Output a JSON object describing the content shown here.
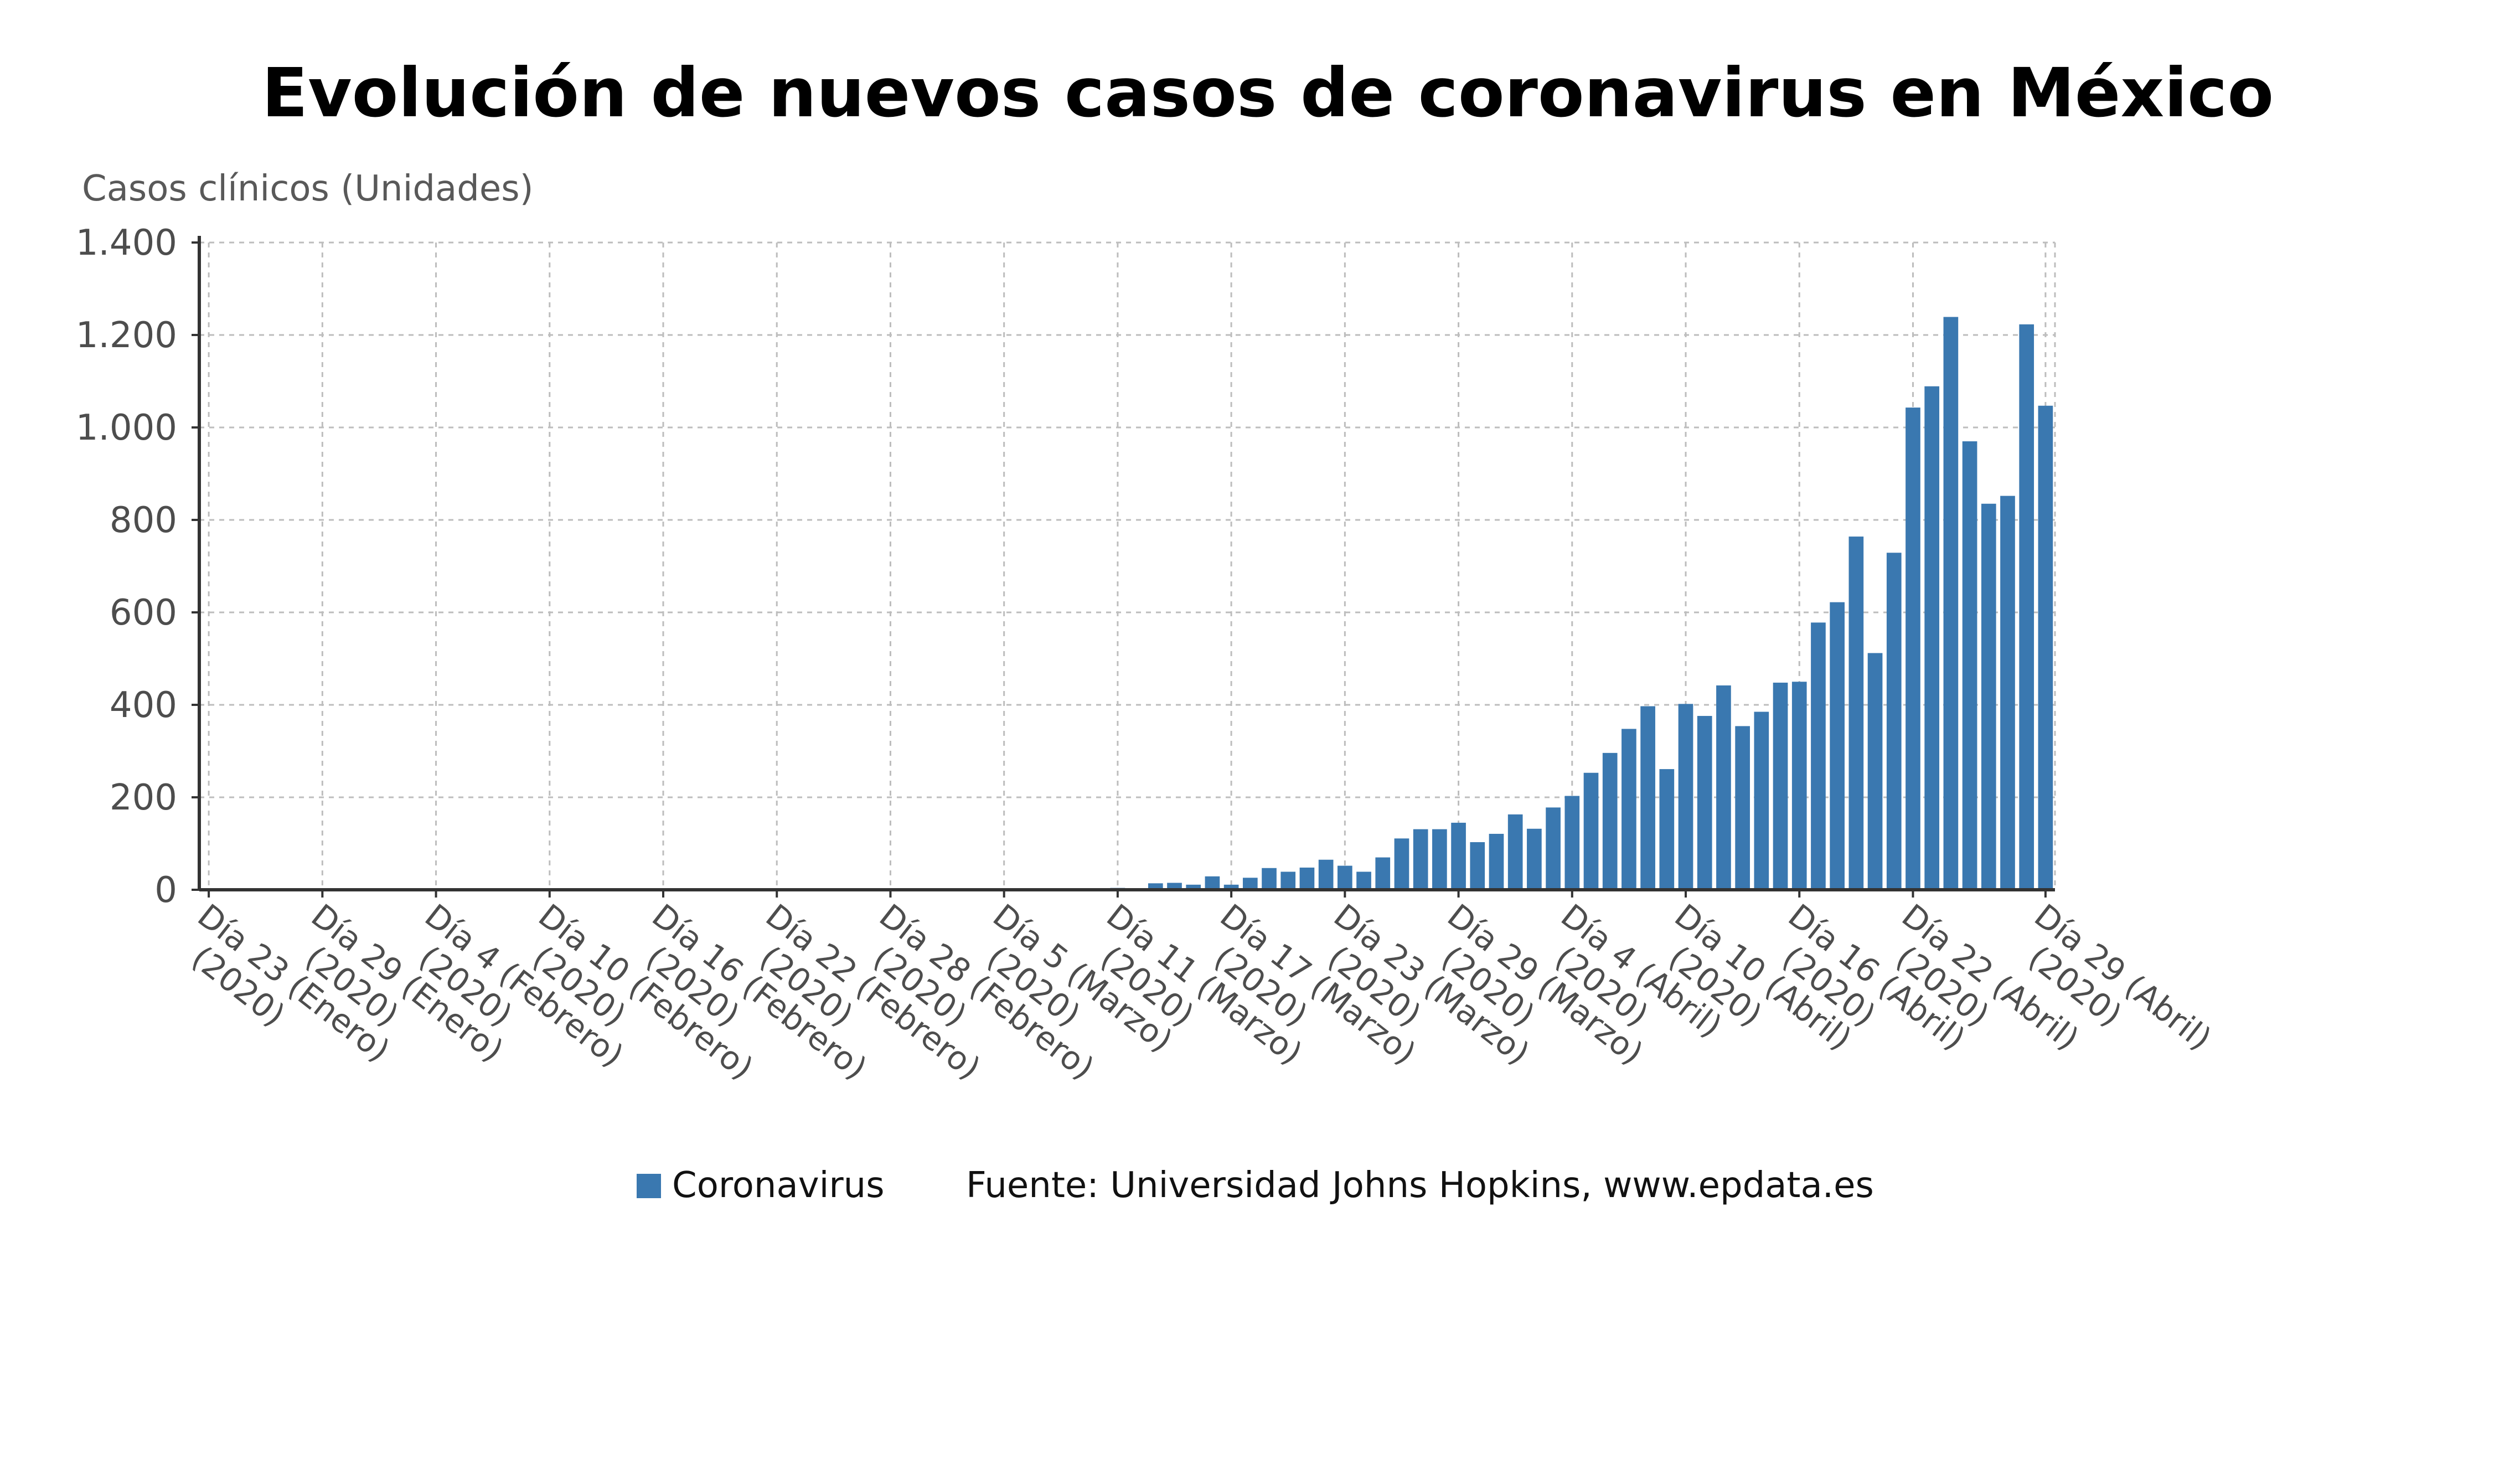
{
  "chart_data": {
    "type": "bar",
    "title": "Evolución de nuevos casos de coronavirus en México",
    "ylabel": "Casos clínicos (Unidades)",
    "xlabel": "",
    "ylim": [
      0,
      1400
    ],
    "yticks": [
      0,
      200,
      400,
      600,
      800,
      1000,
      1200,
      1400
    ],
    "ytick_labels": [
      "0",
      "200",
      "400",
      "600",
      "800",
      "1.000",
      "1.200",
      "1.400"
    ],
    "grid": true,
    "legend_position": "bottom",
    "colors": {
      "bar": "#3a78b0",
      "axis": "#333333",
      "grid": "#bdbdbd"
    },
    "xtick_labels": [
      {
        "index": 0,
        "line1": "Día 23 (Enero)",
        "line2": "(2020)"
      },
      {
        "index": 6,
        "line1": "Día 29 (Enero)",
        "line2": "(2020)"
      },
      {
        "index": 12,
        "line1": "Día 4 (Febrero)",
        "line2": "(2020)"
      },
      {
        "index": 18,
        "line1": "Día 10 (Febrero)",
        "line2": "(2020)"
      },
      {
        "index": 24,
        "line1": "Día 16 (Febrero)",
        "line2": "(2020)"
      },
      {
        "index": 30,
        "line1": "Día 22 (Febrero)",
        "line2": "(2020)"
      },
      {
        "index": 36,
        "line1": "Día 28 (Febrero)",
        "line2": "(2020)"
      },
      {
        "index": 42,
        "line1": "Día 5 (Marzo)",
        "line2": "(2020)"
      },
      {
        "index": 48,
        "line1": "Día 11 (Marzo)",
        "line2": "(2020)"
      },
      {
        "index": 54,
        "line1": "Día 17 (Marzo)",
        "line2": "(2020)"
      },
      {
        "index": 60,
        "line1": "Día 23 (Marzo)",
        "line2": "(2020)"
      },
      {
        "index": 66,
        "line1": "Día 29 (Marzo)",
        "line2": "(2020)"
      },
      {
        "index": 72,
        "line1": "Día 4 (Abril)",
        "line2": "(2020)"
      },
      {
        "index": 78,
        "line1": "Día 10 (Abril)",
        "line2": "(2020)"
      },
      {
        "index": 84,
        "line1": "Día 16 (Abril)",
        "line2": "(2020)"
      },
      {
        "index": 90,
        "line1": "Día 22 (Abril)",
        "line2": "(2020)"
      },
      {
        "index": 97,
        "line1": "Día 29 (Abril)",
        "line2": "(2020)"
      }
    ],
    "series": [
      {
        "name": "Coronavirus",
        "values": [
          0,
          0,
          0,
          0,
          0,
          0,
          0,
          0,
          0,
          0,
          0,
          0,
          0,
          0,
          0,
          0,
          0,
          0,
          0,
          0,
          0,
          0,
          0,
          0,
          0,
          0,
          0,
          0,
          0,
          0,
          0,
          0,
          0,
          0,
          0,
          0,
          0,
          1,
          2,
          1,
          0,
          1,
          0,
          0,
          2,
          1,
          1,
          3,
          4,
          3,
          14,
          15,
          11,
          29,
          11,
          26,
          47,
          39,
          48,
          65,
          52,
          39,
          70,
          111,
          131,
          131,
          145,
          103,
          121,
          163,
          132,
          178,
          203,
          253,
          296,
          348,
          397,
          261,
          402,
          376,
          442,
          354,
          385,
          448,
          450,
          578,
          622,
          764,
          512,
          729,
          1043,
          1089,
          1239,
          970,
          835,
          852,
          1223,
          1047
        ]
      }
    ],
    "source": "Fuente: Universidad Johns Hopkins, www.epdata.es"
  }
}
